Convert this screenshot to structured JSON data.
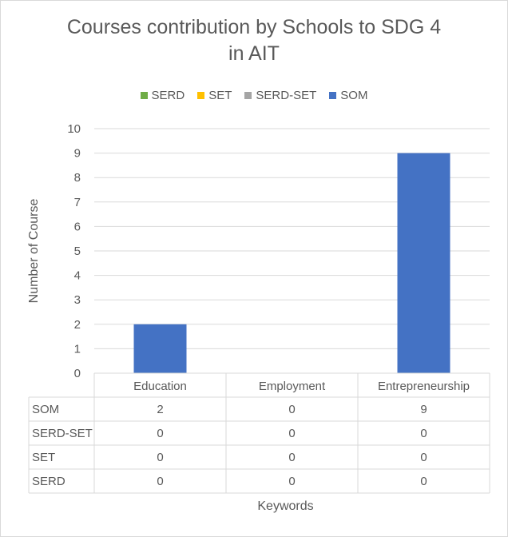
{
  "chart_data": {
    "type": "bar",
    "title_lines": [
      "Courses contribution by Schools to SDG 4",
      "in AIT"
    ],
    "categories": [
      "Education",
      "Employment",
      "Entrepreneurship"
    ],
    "series": [
      {
        "name": "SERD",
        "color": "#70AD47",
        "values": [
          0,
          0,
          0
        ]
      },
      {
        "name": "SET",
        "color": "#FFC000",
        "values": [
          0,
          0,
          0
        ]
      },
      {
        "name": "SERD-SET",
        "color": "#A5A5A5",
        "values": [
          0,
          0,
          0
        ]
      },
      {
        "name": "SOM",
        "color": "#4472C4",
        "values": [
          2,
          0,
          9
        ]
      }
    ],
    "table_rows": [
      {
        "label": "SOM",
        "values": [
          "2",
          "0",
          "9"
        ]
      },
      {
        "label": "SERD-SET",
        "values": [
          "0",
          "0",
          "0"
        ]
      },
      {
        "label": "SET",
        "values": [
          "0",
          "0",
          "0"
        ]
      },
      {
        "label": "SERD",
        "values": [
          "0",
          "0",
          "0"
        ]
      }
    ],
    "xlabel": "Keywords",
    "ylabel": "Number of Course",
    "ylim": [
      0,
      10
    ],
    "yticks": [
      "0",
      "1",
      "2",
      "3",
      "4",
      "5",
      "6",
      "7",
      "8",
      "9",
      "10"
    ],
    "grid": true,
    "legend_position": "top"
  }
}
